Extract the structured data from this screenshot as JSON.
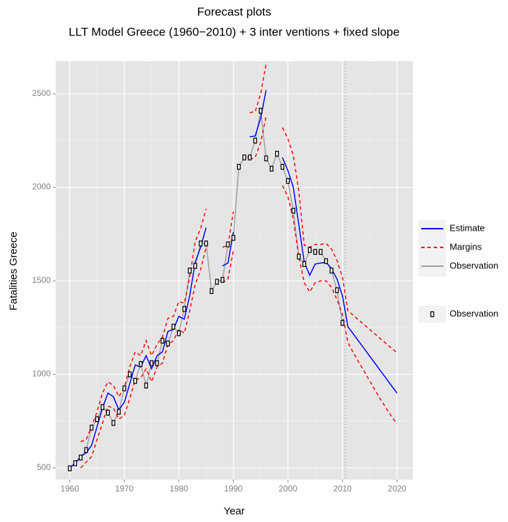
{
  "chart_data": {
    "type": "line",
    "title": "Forecast plots",
    "subtitle": "LLT Model Greece (1960−2010) + 3 inter ventions + fixed slope",
    "x_label": "Year",
    "y_label": "Fatalities Greece",
    "x": [
      1960,
      1961,
      1962,
      1963,
      1964,
      1965,
      1966,
      1967,
      1968,
      1969,
      1970,
      1971,
      1972,
      1973,
      1974,
      1975,
      1976,
      1977,
      1978,
      1979,
      1980,
      1981,
      1982,
      1983,
      1984,
      1985,
      1986,
      1987,
      1988,
      1989,
      1990,
      1991,
      1992,
      1993,
      1994,
      1995,
      1996,
      1997,
      1998,
      1999,
      2000,
      2001,
      2002,
      2003,
      2004,
      2005,
      2006,
      2007,
      2008,
      2009,
      2010,
      2011,
      2012,
      2013,
      2014,
      2015,
      2016,
      2017,
      2018,
      2019,
      2020
    ],
    "series": [
      {
        "name": "Estimate",
        "color": "#0000ff",
        "style": "solid",
        "values": [
          500,
          525,
          560,
          580,
          620,
          720,
          820,
          900,
          880,
          810,
          850,
          950,
          1050,
          1040,
          1100,
          1030,
          1100,
          1120,
          1230,
          1240,
          1310,
          1295,
          1420,
          1600,
          1680,
          1785,
          null,
          null,
          1580,
          1595,
          1760,
          null,
          null,
          2270,
          2275,
          2370,
          2520,
          null,
          null,
          2160,
          2090,
          2000,
          1800,
          1600,
          1530,
          1590,
          1595,
          1600,
          1565,
          1510,
          1420,
          1255,
          1216,
          1176,
          1137,
          1097,
          1058,
          1018,
          979,
          939,
          900
        ]
      },
      {
        "name": "Margins",
        "color": "#ff0000",
        "style": "dashed",
        "upper": [
          null,
          null,
          640,
          650,
          720,
          800,
          900,
          960,
          940,
          880,
          930,
          1040,
          1120,
          1100,
          1180,
          1100,
          1160,
          1200,
          1300,
          1310,
          1390,
          1380,
          1520,
          1710,
          1780,
          1885,
          null,
          null,
          1680,
          1690,
          1870,
          null,
          null,
          2400,
          2405,
          2500,
          2660,
          null,
          null,
          2320,
          2260,
          2170,
          1980,
          1690,
          1680,
          1695,
          1695,
          1700,
          1670,
          1610,
          1520,
          1340,
          1315,
          1290,
          1265,
          1240,
          1215,
          1190,
          1165,
          1140,
          1115
        ],
        "lower": [
          null,
          null,
          500,
          530,
          560,
          650,
          740,
          830,
          820,
          760,
          780,
          870,
          970,
          980,
          1030,
          960,
          1040,
          1060,
          1160,
          1180,
          1240,
          1220,
          1340,
          1480,
          1560,
          1680,
          null,
          null,
          1490,
          1510,
          1660,
          null,
          null,
          2150,
          2160,
          2240,
          2380,
          null,
          null,
          2010,
          1950,
          1830,
          1630,
          1490,
          1440,
          1490,
          1500,
          1500,
          1465,
          1400,
          1320,
          1170,
          1115,
          1065,
          1015,
          965,
          915,
          865,
          820,
          775,
          735
        ]
      },
      {
        "name": "Observation",
        "color": "#a0a0a0",
        "style": "solid",
        "values": [
          497,
          525,
          555,
          595,
          715,
          760,
          825,
          795,
          740,
          800,
          925,
          1000,
          965,
          1055,
          940,
          1060,
          1060,
          1180,
          1165,
          1255,
          1220,
          1350,
          1555,
          1580,
          1700,
          1700,
          1445,
          1495,
          1505,
          1695,
          1730,
          2110,
          2160,
          2160,
          2250,
          2410,
          2155,
          2100,
          2180,
          2110,
          2035,
          1875,
          1630,
          1590,
          1665,
          1655,
          1655,
          1605,
          1555,
          1450,
          1275,
          null,
          null,
          null,
          null,
          null,
          null,
          null,
          null,
          null,
          null
        ]
      }
    ],
    "point_legend": "Observation",
    "vline": 2010.5,
    "xlim": [
      1957.4,
      2022.9
    ],
    "ylim": [
      437,
      2675
    ],
    "xticks": [
      1960,
      1970,
      1980,
      1990,
      2000,
      2010,
      2020
    ],
    "yticks": [
      500,
      1000,
      1500,
      2000,
      2500
    ],
    "grid": true
  }
}
